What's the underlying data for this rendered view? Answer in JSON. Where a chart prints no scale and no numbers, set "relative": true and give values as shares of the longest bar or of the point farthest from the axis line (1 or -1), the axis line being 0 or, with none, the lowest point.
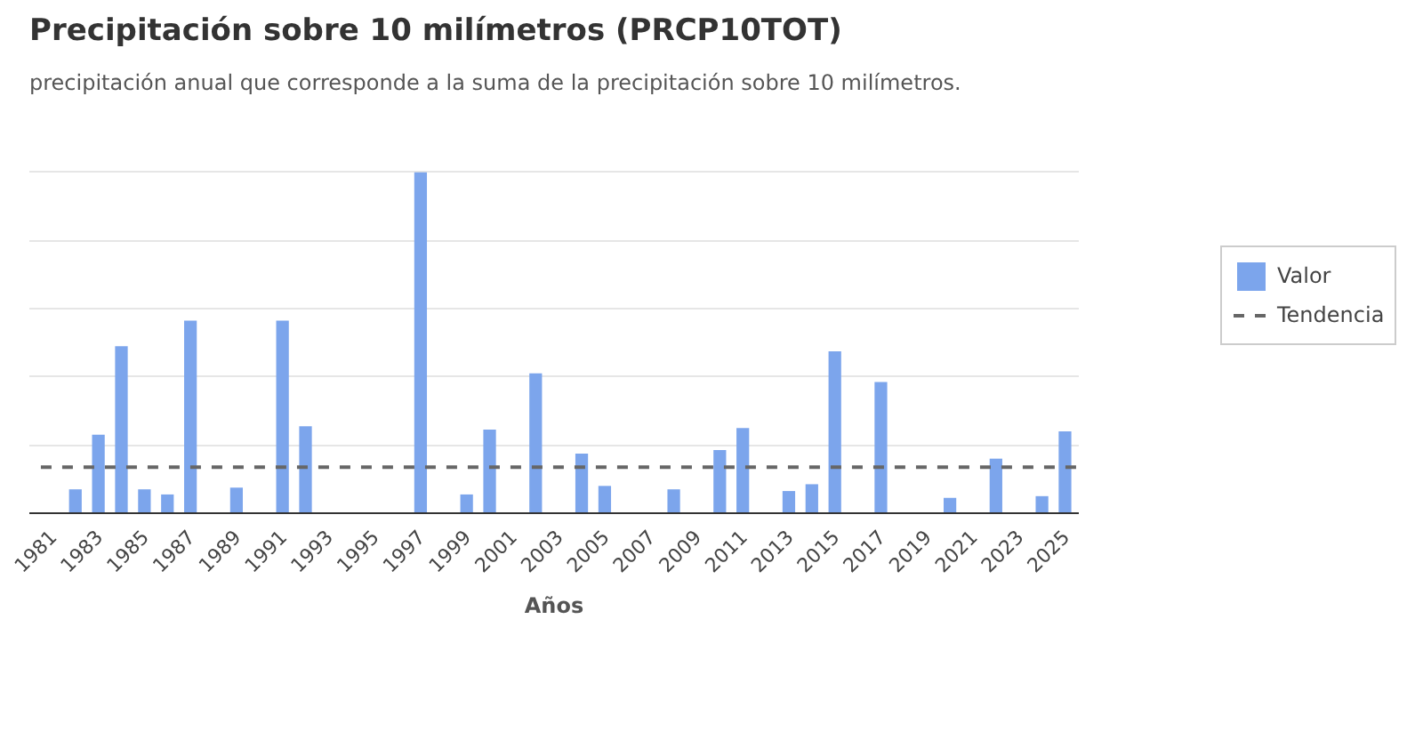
{
  "chart_data": {
    "type": "bar",
    "title": "Precipitación sobre 10 milímetros (PRCP10TOT)",
    "subtitle": "precipitación anual que corresponde a la suma de la precipitación sobre 10 milímetros.",
    "xlabel": "Años",
    "relative": true,
    "x": [
      1982,
      1983,
      1984,
      1985,
      1986,
      1987,
      1989,
      1991,
      1992,
      1997,
      1999,
      2000,
      2002,
      2004,
      2005,
      2008,
      2010,
      2011,
      2013,
      2014,
      2015,
      2017,
      2020,
      2022,
      2024,
      2025
    ],
    "xlim": [
      1980,
      2025.6
    ],
    "xticks": [
      1981,
      1983,
      1985,
      1987,
      1989,
      1991,
      1993,
      1995,
      1997,
      1999,
      2001,
      2003,
      2005,
      2007,
      2009,
      2011,
      2013,
      2015,
      2017,
      2019,
      2021,
      2023,
      2025
    ],
    "series": [
      {
        "name": "Valor",
        "color": "#7ca5ec",
        "values": [
          0.07,
          0.23,
          0.49,
          0.07,
          0.055,
          0.565,
          0.075,
          0.565,
          0.255,
          1,
          0.055,
          0.245,
          0.41,
          0.175,
          0.08,
          0.07,
          0.185,
          0.25,
          0.065,
          0.085,
          0.475,
          0.385,
          0.045,
          0.16,
          0.05,
          0.24
        ]
      },
      {
        "name": "Tendencia",
        "type": "line",
        "color": "#666666",
        "line_style": "dashed",
        "marker": "none",
        "x": [
          1980.5,
          2025.5
        ],
        "values": [
          0.135,
          0.135
        ]
      }
    ],
    "grid": "y",
    "legend": "right"
  }
}
